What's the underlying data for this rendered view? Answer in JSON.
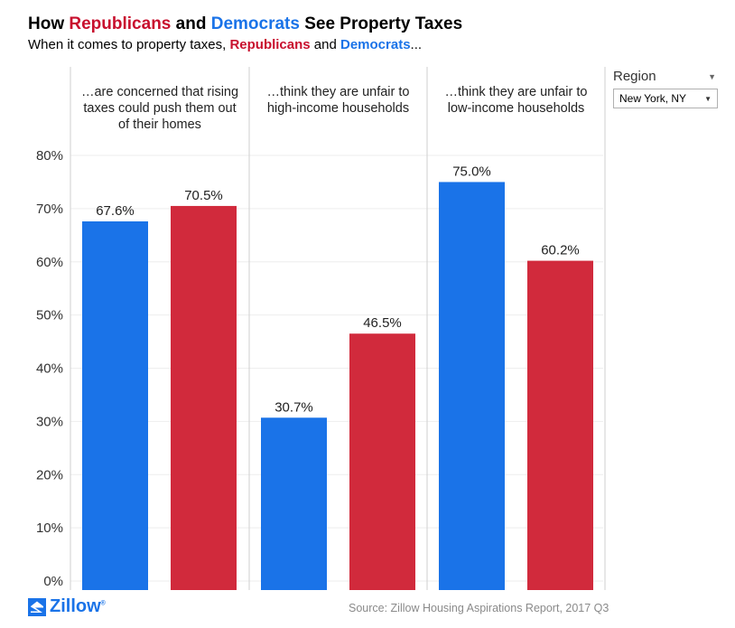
{
  "header": {
    "title_prefix": "How ",
    "title_rep": "Republicans",
    "title_mid": " and ",
    "title_dem": "Democrats",
    "title_suffix": " See Property Taxes",
    "subtitle_prefix": "When it comes to property taxes, ",
    "subtitle_rep": "Republicans",
    "subtitle_mid": " and ",
    "subtitle_dem": "Democrats",
    "subtitle_suffix": "..."
  },
  "filter": {
    "label": "Region",
    "selected": "New York, NY"
  },
  "colors": {
    "democrat": "#1A73E8",
    "republican": "#D12A3C",
    "grid": "#eeeeee",
    "divider": "#cfcfcf"
  },
  "chart_data": {
    "type": "bar",
    "title": "How Republicans and Democrats See Property Taxes",
    "subtitle": "When it comes to property taxes, Republicans and Democrats...",
    "ylim": [
      0,
      80
    ],
    "yticks": [
      "0%",
      "10%",
      "20%",
      "30%",
      "40%",
      "50%",
      "60%",
      "70%",
      "80%"
    ],
    "categories": [
      {
        "label_lines": [
          "…are concerned that rising",
          "taxes could push them out",
          "of their homes"
        ]
      },
      {
        "label_lines": [
          "…think they are unfair to",
          "high-income households"
        ]
      },
      {
        "label_lines": [
          "…think they are unfair to",
          "low-income households"
        ]
      }
    ],
    "series": [
      {
        "name": "Democrats",
        "color": "#1A73E8",
        "values": [
          67.6,
          30.7,
          75.0
        ],
        "labels": [
          "67.6%",
          "30.7%",
          "75.0%"
        ]
      },
      {
        "name": "Republicans",
        "color": "#D12A3C",
        "values": [
          70.5,
          46.5,
          60.2
        ],
        "labels": [
          "70.5%",
          "46.5%",
          "60.2%"
        ]
      }
    ]
  },
  "footer": {
    "logo": "Zillow",
    "logo_mark": "®",
    "logo_icon": "zillow-z-icon",
    "source": "Source: Zillow Housing Aspirations Report, 2017 Q3"
  }
}
